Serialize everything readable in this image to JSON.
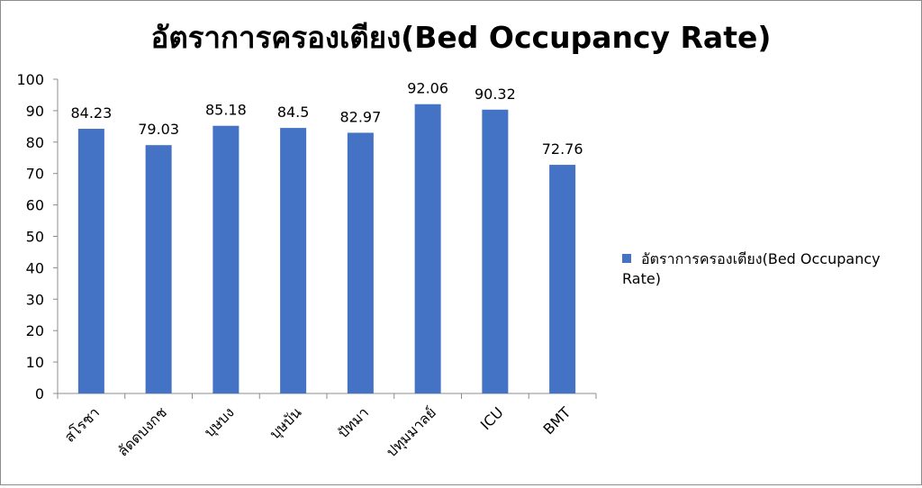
{
  "chart_data": {
    "type": "bar",
    "title": "อัตราการครองเตียง(Bed Occupancy Rate)",
    "categories": [
      "สโรชา",
      "ลัดดบงกช",
      "บุษบง",
      "บุษบัน",
      "ปัทมา",
      "ปทุมมาลย์",
      "ICU",
      "BMT"
    ],
    "series": [
      {
        "name": "อัตราการครองเตียง(Bed Occupancy Rate)",
        "values": [
          84.23,
          79.03,
          85.18,
          84.5,
          82.97,
          92.06,
          90.32,
          72.76
        ],
        "value_labels": [
          "84.23",
          "79.03",
          "85.18",
          "84.5",
          "82.97",
          "92.06",
          "90.32",
          "72.76"
        ],
        "color": "#4472c4"
      }
    ],
    "ylim": [
      0,
      100
    ],
    "yticks": [
      "0",
      "10",
      "20",
      "30",
      "40",
      "50",
      "60",
      "70",
      "80",
      "90",
      "100"
    ],
    "xlabel": "",
    "ylabel": "",
    "grid": false,
    "legend_position": "right"
  }
}
